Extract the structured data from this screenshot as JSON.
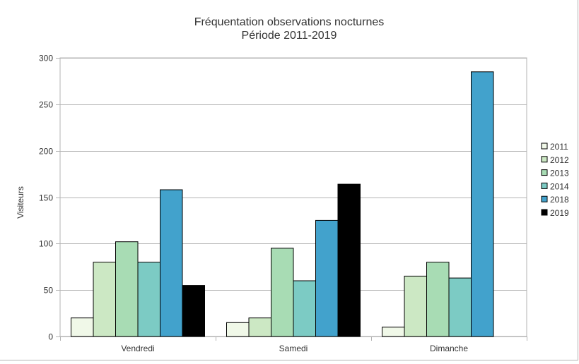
{
  "chart_data": {
    "type": "bar",
    "title": "Fréquentation observations nocturnes",
    "subtitle": "Période 2011-2019",
    "xlabel": "",
    "ylabel": "Visiteurs",
    "ylim": [
      0,
      300
    ],
    "yticks": [
      0,
      50,
      100,
      150,
      200,
      250,
      300
    ],
    "grid": true,
    "legend_position": "right",
    "categories": [
      "Vendredi",
      "Samedi",
      "Dimanche"
    ],
    "series": [
      {
        "name": "2011",
        "color": "#f0f8e8",
        "values": [
          20,
          15,
          10
        ]
      },
      {
        "name": "2012",
        "color": "#cce8c4",
        "values": [
          80,
          20,
          65
        ]
      },
      {
        "name": "2013",
        "color": "#a8dcb4",
        "values": [
          102,
          95,
          80
        ]
      },
      {
        "name": "2014",
        "color": "#7ccbc4",
        "values": [
          80,
          60,
          63
        ]
      },
      {
        "name": "2018",
        "color": "#42a2cc",
        "values": [
          158,
          125,
          285
        ]
      },
      {
        "name": "2019",
        "color": "#000000",
        "values": [
          55,
          164,
          null
        ]
      }
    ]
  }
}
